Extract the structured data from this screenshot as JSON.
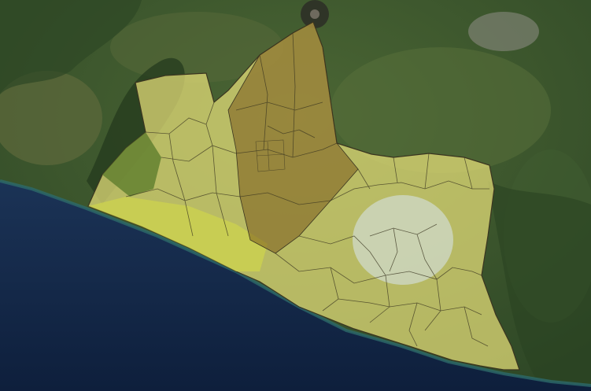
{
  "map": {
    "basemap": "satellite-imagery",
    "colors": {
      "ocean": "#14284a",
      "ocean_deep": "#0f2140",
      "land_green": "#3e5a2e",
      "land_dark": "#2c4424",
      "land_light": "#5f6e3a",
      "coast_teal": "#2d6a6a",
      "region_fill": "#e8e07a",
      "region_border": "#3a3520",
      "overlay_lime": "#d6dc45",
      "overlay_brown": "#7a5a1c",
      "overlay_green": "#58792a",
      "overlay_white": "#d8e6f0",
      "volcano_peak": "#2a2a26",
      "city_grey": "#8f8e86"
    },
    "overlays": [
      {
        "name": "lime-zone",
        "color": "overlay_lime"
      },
      {
        "name": "brown-zone",
        "color": "overlay_brown"
      },
      {
        "name": "green-zone",
        "color": "overlay_green"
      },
      {
        "name": "white-zone",
        "color": "overlay_white"
      }
    ]
  }
}
